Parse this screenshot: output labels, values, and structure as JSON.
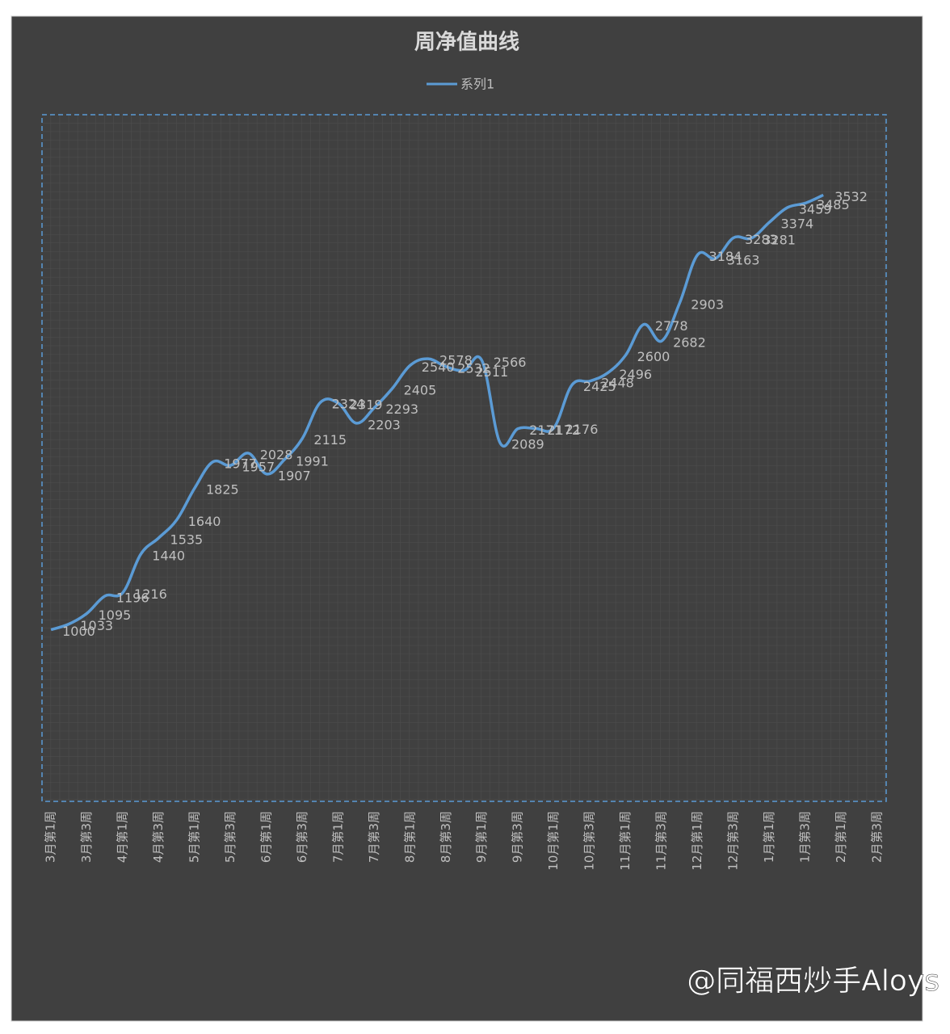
{
  "chart_data": {
    "type": "line",
    "title": "周净值曲线",
    "legend_position": "top",
    "grid": true,
    "categories": [
      "3月第1周",
      null,
      "3月第3周",
      null,
      "4月第1周",
      null,
      "4月第3周",
      null,
      "5月第1周",
      null,
      "5月第3周",
      null,
      "6月第1周",
      null,
      "6月第3周",
      null,
      "7月第1周",
      null,
      "7月第3周",
      null,
      "8月第1周",
      null,
      "8月第3周",
      null,
      "9月第1周",
      null,
      "9月第3周",
      null,
      "10月第1周",
      null,
      "10月第3周",
      null,
      "11月第1周",
      null,
      "11月第3周",
      null,
      "12月第1周",
      null,
      "12月第3周",
      null,
      "1月第1周",
      null,
      "1月第3周",
      null,
      "2月第1周",
      null,
      "2月第3周"
    ],
    "series": [
      {
        "name": "系列1",
        "color": "#5b9bd5",
        "values": [
          1000,
          1033,
          1095,
          1196,
          1216,
          1440,
          1535,
          1640,
          1825,
          1977,
          1957,
          2028,
          1907,
          1991,
          2115,
          2324,
          2319,
          2203,
          2293,
          2405,
          2540,
          2578,
          2532,
          2511,
          2566,
          2089,
          2171,
          2172,
          2176,
          2425,
          2448,
          2496,
          2600,
          2778,
          2682,
          2903,
          3184,
          3163,
          3283,
          3281,
          3374,
          3459,
          3485,
          3532,
          null,
          null,
          null
        ]
      }
    ],
    "ylim": [
      0,
      4000
    ]
  },
  "watermark": "@同福西炒手Aloys"
}
